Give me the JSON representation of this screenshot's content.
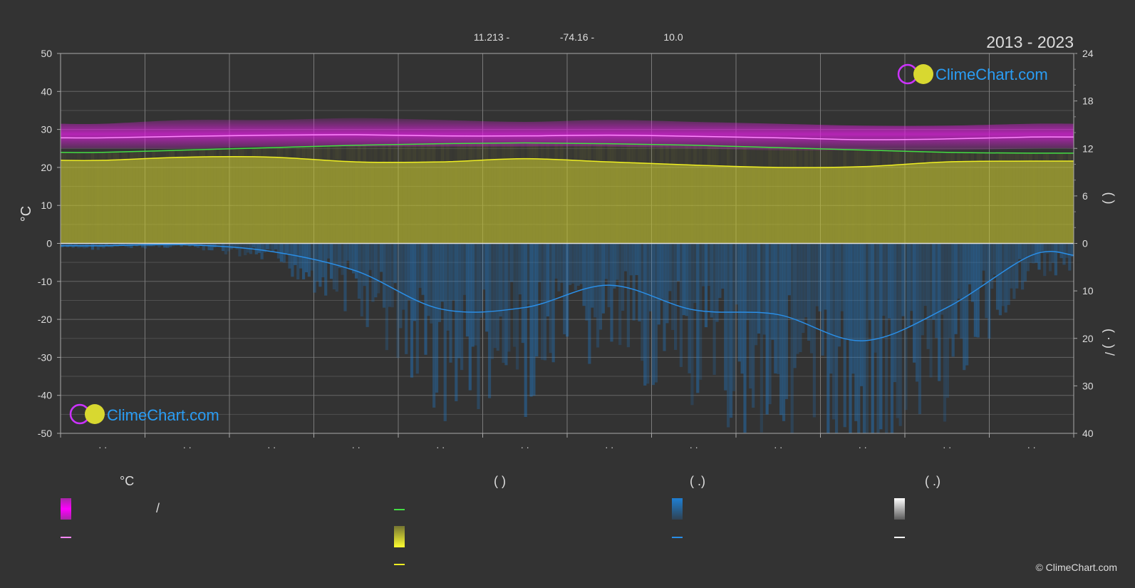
{
  "header": {
    "lat": "11.213 -",
    "lon": "-74.16 -",
    "elev": "10.0",
    "years": "2013 - 2023"
  },
  "axes": {
    "left_unit": "°C",
    "right_upper_label": "(        )",
    "right_lower_label": "(  ·  )     /"
  },
  "watermark": "ClimeChart.com",
  "copyright": "© ClimeChart.com",
  "legend": {
    "temp_header": "°C",
    "sun_header": "(          )",
    "rain_header": "(    .)",
    "snow_header": "(    .)",
    "slash": "/"
  },
  "colors": {
    "background": "#333333",
    "temp_band": "#e020e0",
    "temp_mean": "#ff88ff",
    "daylight": "#44dd44",
    "sunshine": "#d8d830",
    "sunshine_line": "#eeee22",
    "rain": "#1e7fd4",
    "rain_line": "#2a8ee6",
    "snow": "#ffffff",
    "grid": "#666666"
  },
  "chart_data": {
    "type": "area",
    "x_ticks": [
      "· ·",
      "· ·",
      "· ·",
      "· ·",
      "· ·",
      "· ·",
      "· ·",
      "· ·",
      "· ·",
      "· ·",
      "· ·",
      "· ·"
    ],
    "ylim_left": [
      -50,
      50
    ],
    "yticks_left": [
      50,
      40,
      30,
      20,
      10,
      0,
      -10,
      -20,
      -30,
      -40,
      -50
    ],
    "yticks_right_upper": [
      24,
      18,
      12,
      6,
      0
    ],
    "yticks_right_lower": [
      10,
      20,
      30,
      40
    ],
    "months": [
      0.5,
      1.5,
      2.5,
      3.5,
      4.5,
      5.5,
      6.5,
      7.5,
      8.5,
      9.5,
      10.5,
      11.5
    ],
    "temp_mean": [
      27.8,
      28.2,
      28.5,
      28.6,
      28.3,
      28.3,
      28.5,
      28.2,
      27.8,
      27.3,
      27.5,
      28.0
    ],
    "temp_max": [
      31.5,
      32.5,
      32.5,
      33.0,
      32.5,
      32.0,
      32.5,
      32.0,
      31.5,
      31.0,
      31.0,
      31.5
    ],
    "temp_min": [
      25.0,
      25.0,
      25.5,
      25.5,
      25.5,
      25.5,
      25.5,
      25.0,
      24.5,
      24.5,
      24.5,
      25.0
    ],
    "daylight_hours": [
      11.5,
      11.8,
      12.1,
      12.4,
      12.6,
      12.7,
      12.6,
      12.4,
      12.1,
      11.8,
      11.5,
      11.4
    ],
    "sunshine_hours": [
      10.5,
      10.9,
      10.9,
      10.3,
      10.3,
      10.7,
      10.3,
      9.9,
      9.6,
      9.7,
      10.3,
      10.4
    ],
    "rain_mm_day": [
      0.5,
      0.3,
      1.7,
      5.8,
      13.8,
      13.5,
      8.8,
      14.0,
      15.0,
      20.5,
      13.5,
      2.5
    ]
  }
}
